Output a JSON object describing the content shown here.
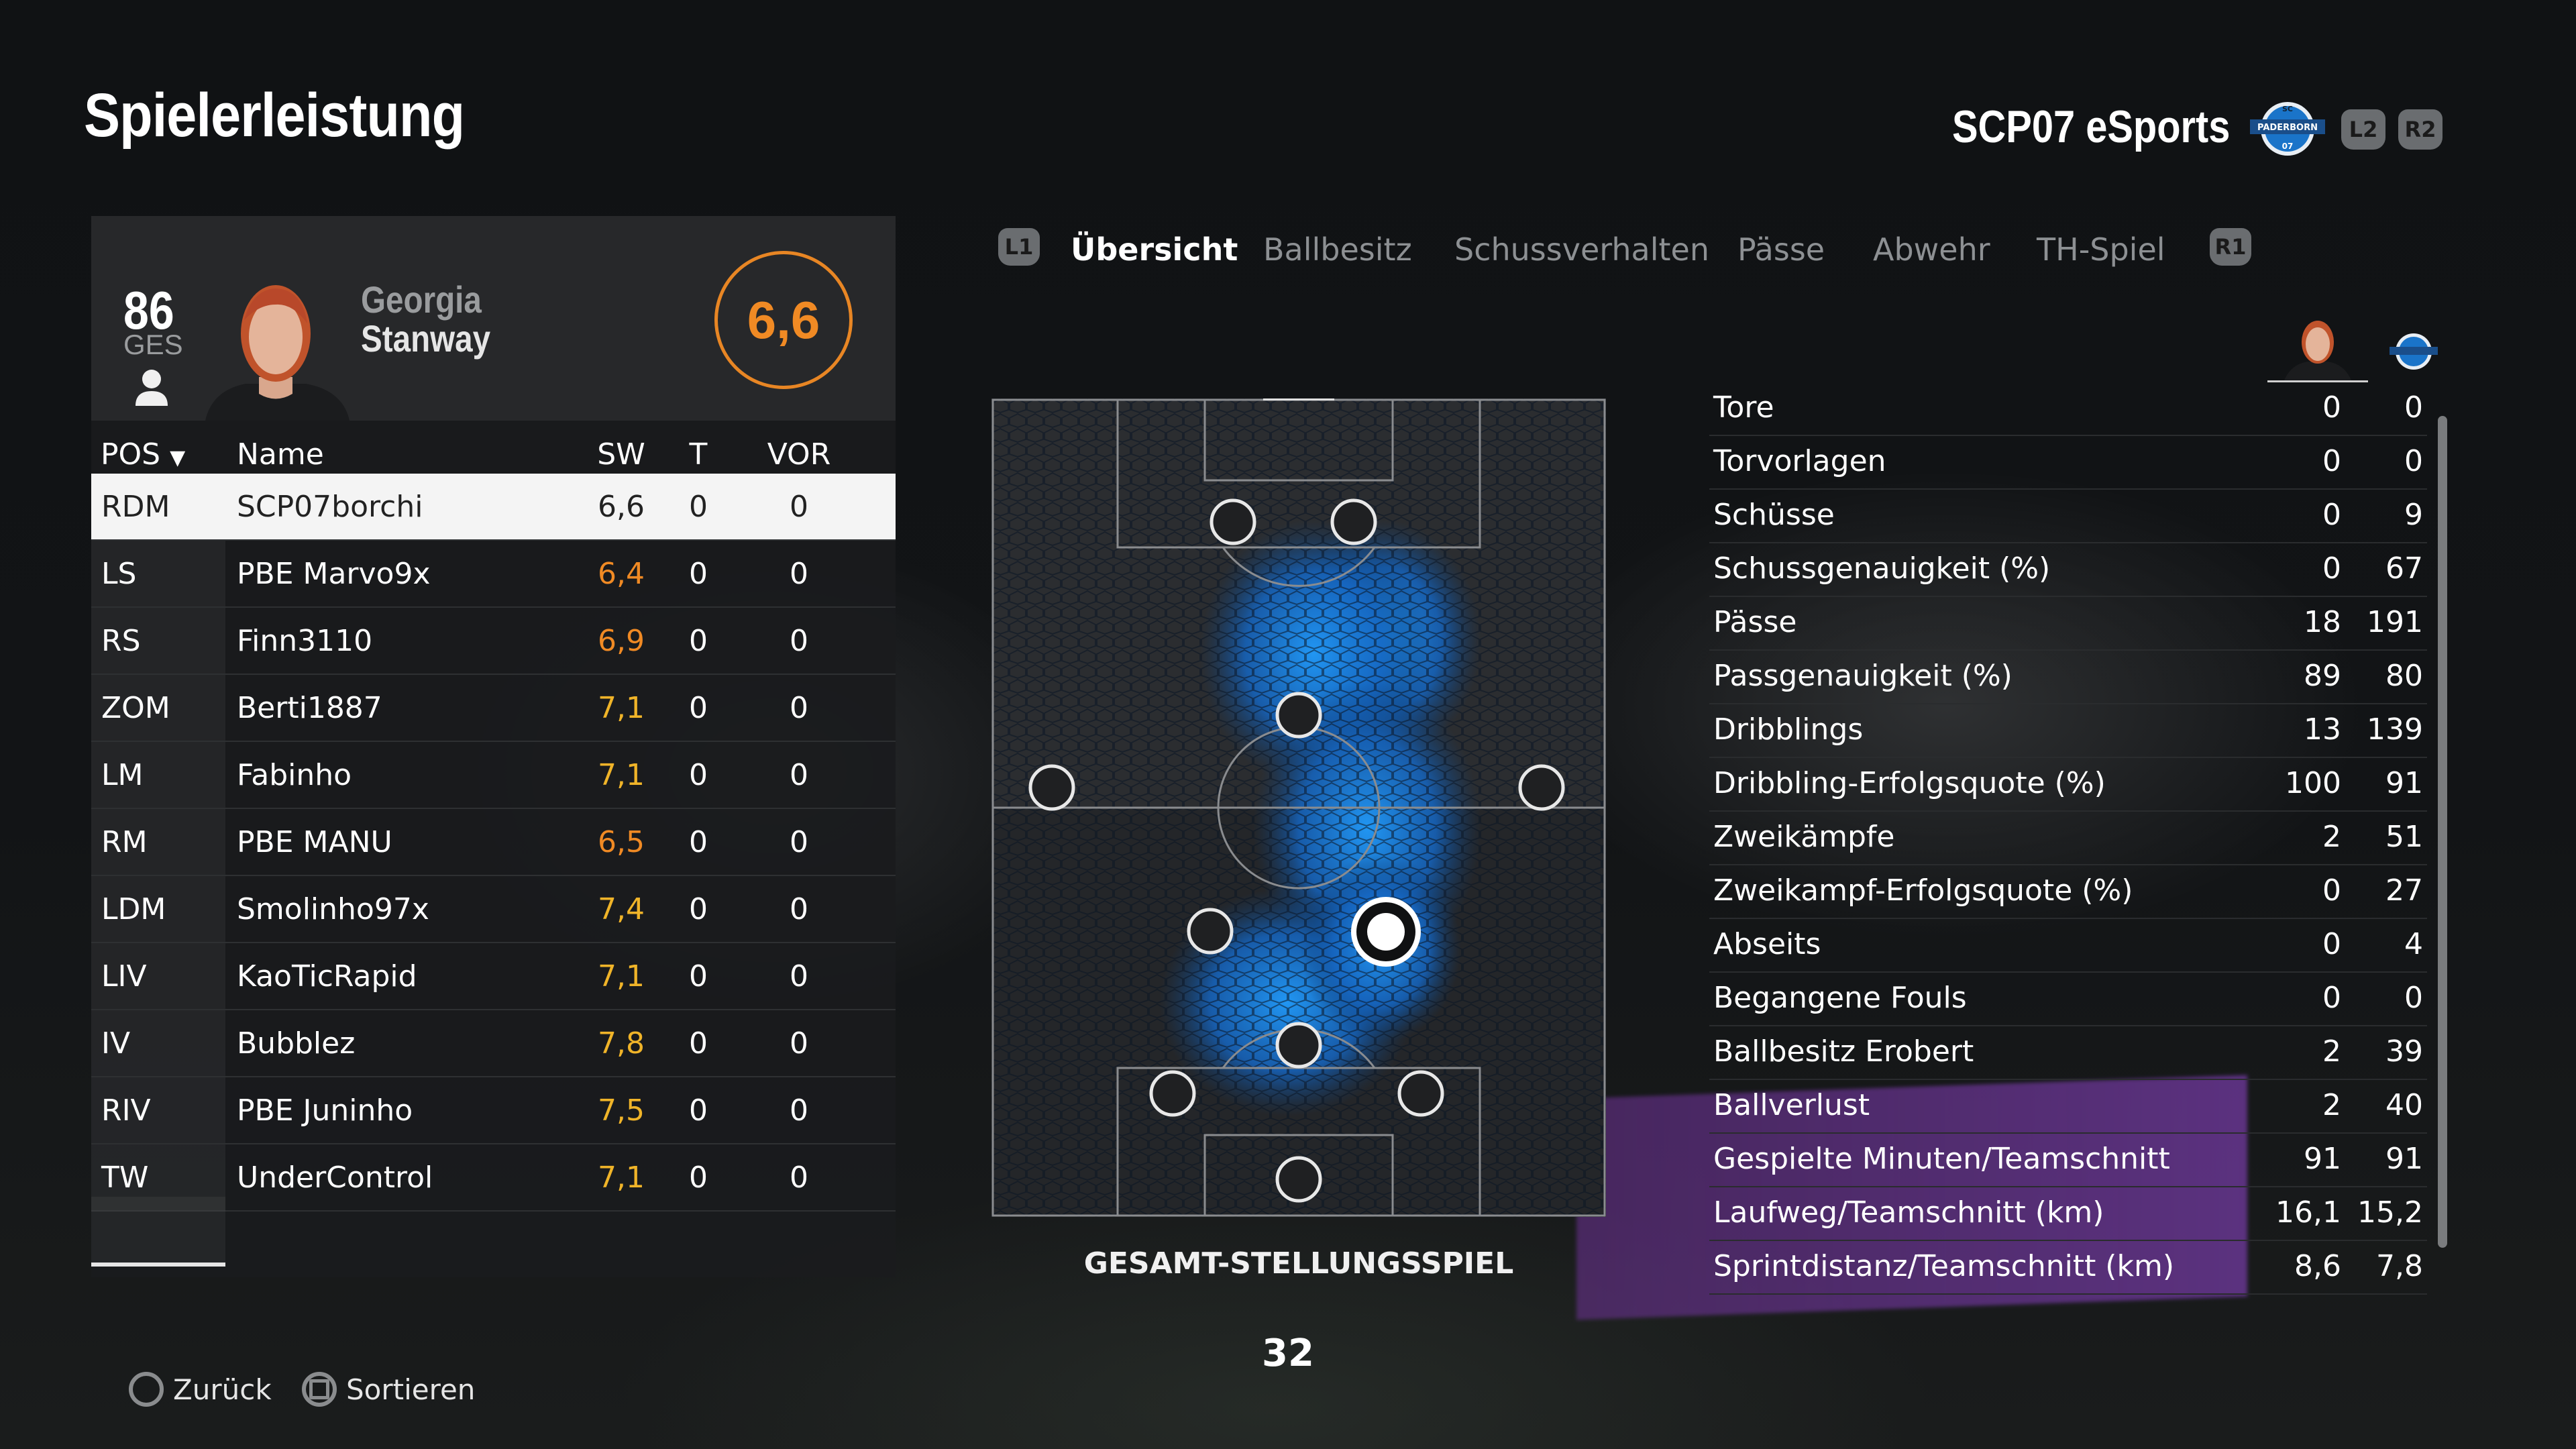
{
  "page_title": "Spielerleistung",
  "team": {
    "name": "SCP07 eSports",
    "crest_text_top": "SC",
    "crest_text_main": "PADERBORN",
    "crest_text_num": "07"
  },
  "shoulder_buttons": {
    "l2": "L2",
    "r2": "R2",
    "l1": "L1",
    "r1": "R1"
  },
  "player": {
    "overall_value": "86",
    "overall_label": "GES",
    "first_name": "Georgia",
    "last_name": "Stanway",
    "rating": "6,6"
  },
  "table": {
    "headers": {
      "pos": "POS",
      "name": "Name",
      "sw": "SW",
      "t": "T",
      "vor": "VOR"
    },
    "rows": [
      {
        "pos": "RDM",
        "name": "SCP07borchi",
        "sw": "6,6",
        "t": "0",
        "vor": "0"
      },
      {
        "pos": "LS",
        "name": "PBE Marvo9x",
        "sw": "6,4",
        "t": "0",
        "vor": "0"
      },
      {
        "pos": "RS",
        "name": "Finn3110",
        "sw": "6,9",
        "t": "0",
        "vor": "0"
      },
      {
        "pos": "ZOM",
        "name": "Berti1887",
        "sw": "7,1",
        "t": "0",
        "vor": "0"
      },
      {
        "pos": "LM",
        "name": "Fabinho",
        "sw": "7,1",
        "t": "0",
        "vor": "0"
      },
      {
        "pos": "RM",
        "name": "PBE MANU",
        "sw": "6,5",
        "t": "0",
        "vor": "0"
      },
      {
        "pos": "LDM",
        "name": "Smolinho97x",
        "sw": "7,4",
        "t": "0",
        "vor": "0"
      },
      {
        "pos": "LIV",
        "name": "KaoTicRapid",
        "sw": "7,1",
        "t": "0",
        "vor": "0"
      },
      {
        "pos": "IV",
        "name": "Bubblez",
        "sw": "7,8",
        "t": "0",
        "vor": "0"
      },
      {
        "pos": "RIV",
        "name": "PBE Juninho",
        "sw": "7,5",
        "t": "0",
        "vor": "0"
      },
      {
        "pos": "TW",
        "name": "UnderControl",
        "sw": "7,1",
        "t": "0",
        "vor": "0"
      }
    ]
  },
  "tabs": [
    "Übersicht",
    "Ballbesitz",
    "Schussverhalten",
    "Pässe",
    "Abwehr",
    "TH-Spiel"
  ],
  "active_tab": "Übersicht",
  "pitch_caption": "GESAMT-STELLUNGSSPIEL",
  "page_number": "32",
  "stats": [
    {
      "label": "Tore",
      "player": "0",
      "team": "0"
    },
    {
      "label": "Torvorlagen",
      "player": "0",
      "team": "0"
    },
    {
      "label": "Schüsse",
      "player": "0",
      "team": "9"
    },
    {
      "label": "Schussgenauigkeit (%)",
      "player": "0",
      "team": "67"
    },
    {
      "label": "Pässe",
      "player": "18",
      "team": "191"
    },
    {
      "label": "Passgenauigkeit (%)",
      "player": "89",
      "team": "80"
    },
    {
      "label": "Dribblings",
      "player": "13",
      "team": "139"
    },
    {
      "label": "Dribbling-Erfolgsquote (%)",
      "player": "100",
      "team": "91"
    },
    {
      "label": "Zweikämpfe",
      "player": "2",
      "team": "51"
    },
    {
      "label": "Zweikampf-Erfolgsquote (%)",
      "player": "0",
      "team": "27"
    },
    {
      "label": "Abseits",
      "player": "0",
      "team": "4"
    },
    {
      "label": "Begangene Fouls",
      "player": "0",
      "team": "0"
    },
    {
      "label": "Ballbesitz Erobert",
      "player": "2",
      "team": "39"
    },
    {
      "label": "Ballverlust",
      "player": "2",
      "team": "40"
    },
    {
      "label": "Gespielte Minuten/Teamschnitt",
      "player": "91",
      "team": "91"
    },
    {
      "label": "Laufweg/Teamschnitt (km)",
      "player": "16,1",
      "team": "15,2"
    },
    {
      "label": "Sprintdistanz/Teamschnitt (km)",
      "player": "8,6",
      "team": "7,8"
    }
  ],
  "footer": {
    "back_label": "Zurück",
    "sort_label": "Sortieren"
  },
  "colors": {
    "accent_orange": "#f08a24",
    "rating_yellow": "#f0b429",
    "heat_blue": "#1e88e5"
  }
}
